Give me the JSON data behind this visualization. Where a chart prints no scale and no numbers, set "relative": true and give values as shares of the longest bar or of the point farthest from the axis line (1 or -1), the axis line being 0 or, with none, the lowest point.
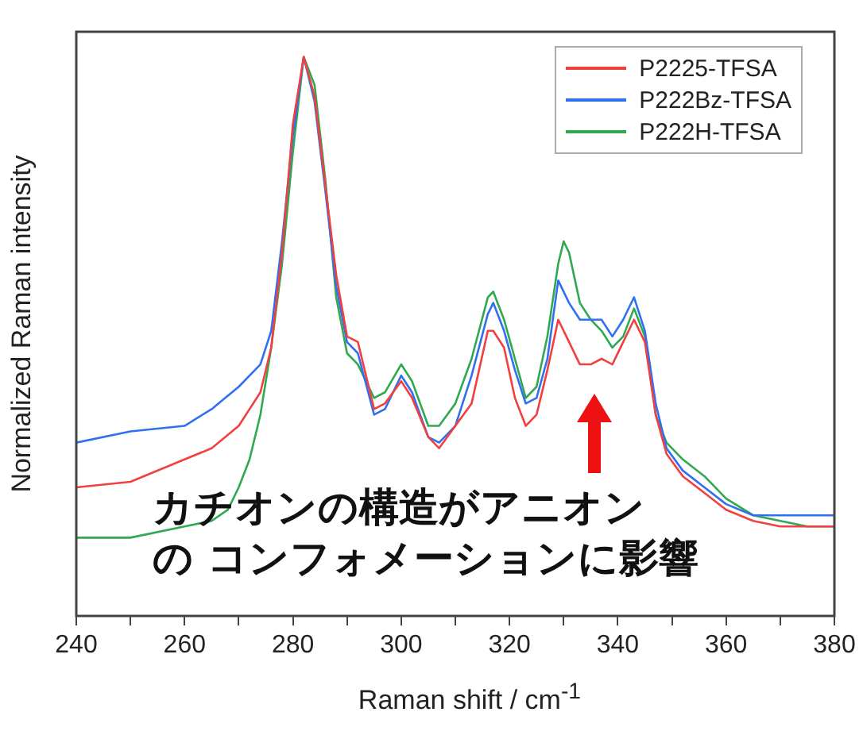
{
  "chart_data": {
    "type": "line",
    "relative": true,
    "xlabel": "Raman shift / cm$^{-1}$",
    "ylabel": "Normalized Raman intensity",
    "xlim": [
      240,
      380
    ],
    "xticks": [
      240,
      {
        "value": 250,
        "label": null
      },
      260,
      {
        "value": 270,
        "label": null
      },
      280,
      {
        "value": 290,
        "label": null
      },
      300,
      {
        "value": 310,
        "label": null
      },
      320,
      {
        "value": 330,
        "label": null
      },
      340,
      {
        "value": 350,
        "label": null
      },
      360,
      {
        "value": 370,
        "label": null
      },
      380
    ],
    "grid": false,
    "legend": "top right",
    "marker": "none",
    "line_style": "solid",
    "annotations": [
      "カチオンの構造がアニオン",
      "の コンフォメーションに影響"
    ],
    "series": [
      {
        "name": "P2225-TFSA",
        "color": "#f04040",
        "x": [
          240,
          250,
          260,
          265,
          270,
          274,
          276,
          278,
          280,
          282,
          284,
          286,
          288,
          290,
          292,
          295,
          297,
          300,
          302,
          305,
          307,
          310,
          313,
          316,
          317,
          319,
          321,
          323,
          325,
          327,
          329,
          331,
          333,
          335,
          337,
          339,
          341,
          343,
          345,
          347,
          349,
          352,
          356,
          360,
          365,
          370,
          375,
          380
        ],
        "values": [
          0.23,
          0.24,
          0.28,
          0.3,
          0.34,
          0.4,
          0.48,
          0.65,
          0.88,
          1.0,
          0.93,
          0.77,
          0.61,
          0.5,
          0.49,
          0.37,
          0.38,
          0.42,
          0.39,
          0.32,
          0.3,
          0.34,
          0.38,
          0.51,
          0.51,
          0.48,
          0.39,
          0.34,
          0.36,
          0.44,
          0.53,
          0.49,
          0.45,
          0.45,
          0.46,
          0.45,
          0.49,
          0.53,
          0.49,
          0.36,
          0.29,
          0.25,
          0.22,
          0.19,
          0.17,
          0.16,
          0.16,
          0.16
        ]
      },
      {
        "name": "P222Bz-TFSA",
        "color": "#3070f0",
        "x": [
          240,
          250,
          260,
          265,
          270,
          274,
          276,
          278,
          280,
          282,
          284,
          286,
          288,
          290,
          292,
          295,
          297,
          300,
          302,
          305,
          307,
          310,
          313,
          316,
          317,
          319,
          321,
          323,
          325,
          327,
          329,
          331,
          333,
          335,
          337,
          339,
          341,
          343,
          345,
          347,
          349,
          352,
          356,
          360,
          365,
          370,
          375,
          380
        ],
        "values": [
          0.31,
          0.33,
          0.34,
          0.37,
          0.41,
          0.45,
          0.51,
          0.67,
          0.86,
          1.0,
          0.92,
          0.76,
          0.59,
          0.49,
          0.47,
          0.36,
          0.37,
          0.43,
          0.4,
          0.32,
          0.31,
          0.34,
          0.43,
          0.54,
          0.56,
          0.51,
          0.44,
          0.38,
          0.39,
          0.46,
          0.6,
          0.56,
          0.53,
          0.53,
          0.53,
          0.5,
          0.53,
          0.57,
          0.51,
          0.38,
          0.3,
          0.26,
          0.23,
          0.2,
          0.18,
          0.18,
          0.18,
          0.18
        ]
      },
      {
        "name": "P222H-TFSA",
        "color": "#30a850",
        "x": [
          240,
          250,
          260,
          265,
          268,
          270,
          272,
          274,
          276,
          278,
          280,
          282,
          284,
          286,
          288,
          290,
          292,
          295,
          297,
          300,
          302,
          305,
          307,
          310,
          313,
          316,
          317,
          319,
          321,
          323,
          325,
          327,
          329,
          330,
          331,
          333,
          335,
          337,
          339,
          341,
          343,
          345,
          347,
          349,
          352,
          356,
          360,
          365,
          370,
          375,
          380
        ],
        "values": [
          0.14,
          0.14,
          0.16,
          0.17,
          0.19,
          0.23,
          0.28,
          0.36,
          0.48,
          0.63,
          0.83,
          1.0,
          0.95,
          0.78,
          0.57,
          0.47,
          0.45,
          0.39,
          0.4,
          0.45,
          0.42,
          0.34,
          0.34,
          0.38,
          0.46,
          0.57,
          0.58,
          0.53,
          0.46,
          0.39,
          0.41,
          0.5,
          0.63,
          0.67,
          0.65,
          0.56,
          0.53,
          0.51,
          0.48,
          0.5,
          0.55,
          0.5,
          0.36,
          0.31,
          0.28,
          0.25,
          0.21,
          0.18,
          0.17,
          0.16,
          0.16
        ]
      }
    ]
  }
}
